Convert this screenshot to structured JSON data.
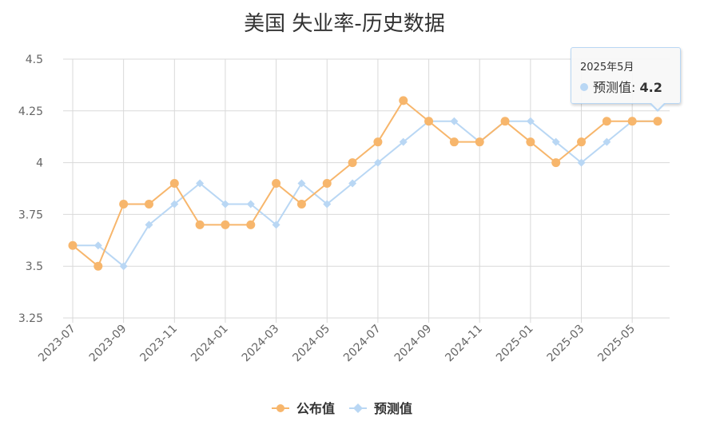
{
  "chart_data": {
    "type": "line",
    "title": "美国 失业率-历史数据",
    "x": [
      "2023-07",
      "2023-08",
      "2023-09",
      "2023-10",
      "2023-11",
      "2023-12",
      "2024-01",
      "2024-02",
      "2024-03",
      "2024-04",
      "2024-05",
      "2024-06",
      "2024-07",
      "2024-08",
      "2024-09",
      "2024-10",
      "2024-11",
      "2024-12",
      "2025-01",
      "2025-02",
      "2025-03",
      "2025-04",
      "2025-05",
      "2025-06"
    ],
    "x_tick_labels": [
      "2023-07",
      "2023-09",
      "2023-11",
      "2024-01",
      "2024-03",
      "2024-05",
      "2024-07",
      "2024-09",
      "2024-11",
      "2025-01",
      "2025-03",
      "2025-05"
    ],
    "series": [
      {
        "name": "公布值",
        "color": "#f7b66c",
        "marker": "circle",
        "values": [
          3.6,
          3.5,
          3.8,
          3.8,
          3.9,
          3.7,
          3.7,
          3.7,
          3.9,
          3.8,
          3.9,
          4.0,
          4.1,
          4.3,
          4.2,
          4.1,
          4.1,
          4.2,
          4.1,
          4.0,
          4.1,
          4.2,
          4.2,
          4.2
        ]
      },
      {
        "name": "预测值",
        "color": "#b9d7f4",
        "marker": "diamond",
        "values": [
          3.6,
          3.6,
          3.5,
          3.7,
          3.8,
          3.9,
          3.8,
          3.8,
          3.7,
          3.9,
          3.8,
          3.9,
          4.0,
          4.1,
          4.2,
          4.2,
          4.1,
          4.2,
          4.2,
          4.1,
          4.0,
          4.1,
          4.2,
          4.2
        ]
      }
    ],
    "ylim": [
      3.25,
      4.5
    ],
    "y_ticks": [
      "3.25",
      "3.5",
      "3.75",
      "4",
      "4.25",
      "4.5"
    ],
    "grid": true,
    "legend": "bottom-center"
  },
  "tooltip": {
    "date": "2025年5月",
    "series_name": "预测值",
    "value": "4.2"
  }
}
